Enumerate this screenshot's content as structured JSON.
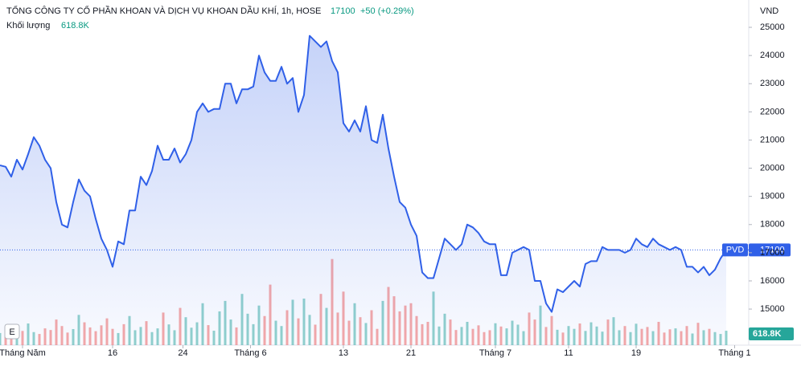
{
  "header": {
    "title": "TỔNG CÔNG TY CỔ PHẦN KHOAN VÀ DỊCH VỤ KHOAN DẦU KHÍ, 1h, HOSE",
    "last_price": 17100,
    "change": "+50 (+0.29%)",
    "volume_caption": "Khối lượng",
    "volume_label": "618.8K",
    "currency": "VND",
    "ticker": "PVD",
    "button": "E"
  },
  "chart_data": {
    "type": "line",
    "x": [
      0,
      1,
      2,
      3,
      4,
      5,
      6,
      7,
      8,
      9,
      10,
      11,
      12,
      13,
      14,
      15,
      16,
      17,
      18,
      19,
      20,
      21,
      22,
      23,
      24,
      25,
      26,
      27,
      28,
      29,
      30,
      31,
      32,
      33,
      34,
      35,
      36,
      37,
      38,
      39,
      40,
      41,
      42,
      43,
      44,
      45,
      46,
      47,
      48,
      49,
      50,
      51,
      52,
      53,
      54,
      55,
      56,
      57,
      58,
      59,
      60,
      61,
      62,
      63,
      64,
      65,
      66,
      67,
      68,
      69,
      70,
      71,
      72,
      73,
      74,
      75,
      76,
      77,
      78,
      79,
      80,
      81,
      82,
      83,
      84,
      85,
      86,
      87,
      88,
      89,
      90,
      91,
      92,
      93,
      94,
      95,
      96,
      97,
      98,
      99,
      100,
      101,
      102,
      103,
      104,
      105,
      106,
      107,
      108,
      109,
      110,
      111,
      112,
      113,
      114,
      115,
      116,
      117,
      118,
      119,
      120,
      121,
      122,
      123,
      124,
      125,
      126,
      127,
      128,
      129
    ],
    "series": [
      {
        "name": "PVD",
        "color": "#3060e8",
        "values": [
          20100,
          20050,
          19700,
          20300,
          19950,
          20500,
          21100,
          20800,
          20300,
          20000,
          18800,
          18000,
          17900,
          18800,
          19600,
          19200,
          19000,
          18200,
          17500,
          17100,
          16500,
          17400,
          17300,
          18500,
          18500,
          19700,
          19400,
          19900,
          20800,
          20300,
          20300,
          20700,
          20200,
          20500,
          21000,
          22000,
          22300,
          22000,
          22100,
          22100,
          23000,
          23000,
          22300,
          22800,
          22800,
          22900,
          24000,
          23400,
          23100,
          23100,
          23600,
          23000,
          23200,
          22000,
          22600,
          24700,
          24500,
          24300,
          24500,
          23800,
          23400,
          21600,
          21300,
          21700,
          21300,
          22200,
          21000,
          20900,
          21900,
          20700,
          19700,
          18800,
          18600,
          18000,
          17600,
          16300,
          16100,
          16100,
          16800,
          17500,
          17300,
          17100,
          17300,
          18000,
          17900,
          17700,
          17400,
          17300,
          17300,
          16200,
          16200,
          17000,
          17100,
          17200,
          17100,
          16000,
          16000,
          15200,
          14900,
          15700,
          15600,
          15800,
          16000,
          15800,
          16600,
          16700,
          16700,
          17200,
          17100,
          17100,
          17100,
          17000,
          17100,
          17500,
          17300,
          17200,
          17500,
          17300,
          17200,
          17100,
          17200,
          17100,
          16500,
          16500,
          16300,
          16500,
          16200,
          16400,
          16800,
          17100
        ]
      }
    ],
    "volume": [
      520000,
      700000,
      880000,
      450000,
      610000,
      930000,
      560000,
      480000,
      720000,
      650000,
      1100000,
      820000,
      540000,
      690000,
      1300000,
      980000,
      760000,
      600000,
      850000,
      1150000,
      700000,
      520000,
      900000,
      1250000,
      640000,
      780000,
      1030000,
      560000,
      720000,
      1400000,
      890000,
      640000,
      1600000,
      1200000,
      750000,
      980000,
      1800000,
      860000,
      620000,
      1450000,
      1900000,
      1100000,
      760000,
      2200000,
      1350000,
      900000,
      1700000,
      1250000,
      2600000,
      1050000,
      820000,
      1500000,
      1950000,
      1150000,
      2000000,
      1300000,
      880000,
      2200000,
      1600000,
      3700000,
      1400000,
      2300000,
      1050000,
      1800000,
      1200000,
      950000,
      1500000,
      700000,
      1900000,
      2500000,
      2100000,
      1450000,
      1700000,
      1800000,
      1250000,
      900000,
      1000000,
      2300000,
      800000,
      1350000,
      1100000,
      650000,
      780000,
      1000000,
      700000,
      850000,
      560000,
      640000,
      940000,
      800000,
      720000,
      1050000,
      880000,
      600000,
      1400000,
      1100000,
      1700000,
      780000,
      1250000,
      660000,
      540000,
      820000,
      700000,
      930000,
      610000,
      980000,
      800000,
      580000,
      1100000,
      1200000,
      640000,
      820000,
      560000,
      920000,
      700000,
      780000,
      600000,
      1000000,
      540000,
      680000,
      720000,
      600000,
      820000,
      500000,
      960000,
      640000,
      700000,
      560000,
      480000,
      618800
    ],
    "xlim": [
      0,
      133
    ],
    "xticks": [
      {
        "value": 4,
        "label": "Tháng Năm"
      },
      {
        "value": 20,
        "label": "16"
      },
      {
        "value": 32.5,
        "label": "24"
      },
      {
        "value": 44.5,
        "label": "Tháng 6"
      },
      {
        "value": 61,
        "label": "13"
      },
      {
        "value": 73,
        "label": "21"
      },
      {
        "value": 88,
        "label": "Tháng 7"
      },
      {
        "value": 101,
        "label": "11"
      },
      {
        "value": 113,
        "label": "19"
      },
      {
        "value": 130.5,
        "label": "Tháng 1"
      }
    ],
    "ylim": [
      13720,
      25970
    ],
    "yticks": [
      15000,
      16000,
      17000,
      18000,
      19000,
      20000,
      21000,
      22000,
      23000,
      24000,
      25000
    ]
  }
}
